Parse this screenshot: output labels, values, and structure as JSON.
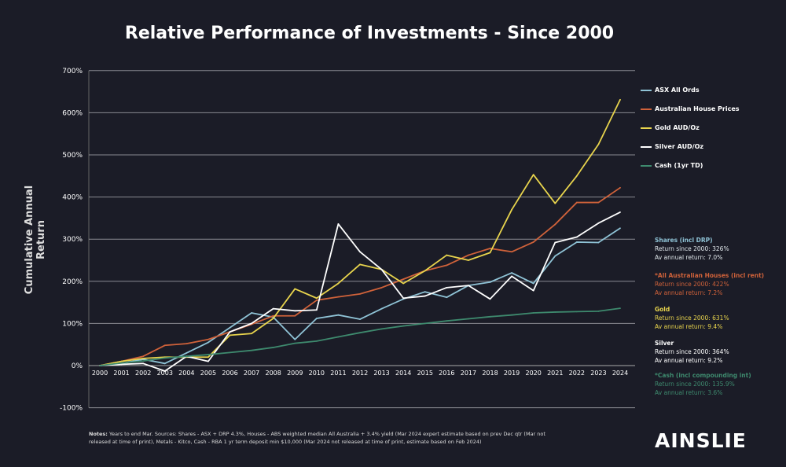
{
  "chart_data": {
    "type": "line",
    "title": "Relative Performance of Investments - Since 2000",
    "xlabel": "",
    "ylabel": "Cumulative Annual Return",
    "ylim": [
      -100,
      700
    ],
    "yticks": [
      "-100%",
      "0%",
      "100%",
      "200%",
      "300%",
      "400%",
      "500%",
      "600%",
      "700%"
    ],
    "grid": true,
    "legend_placement": "right",
    "x": [
      "2000",
      "2001",
      "2002",
      "2003",
      "2004",
      "2005",
      "2006",
      "2007",
      "2008",
      "2009",
      "2010",
      "2011",
      "2012",
      "2013",
      "2014",
      "2015",
      "2016",
      "2017",
      "2018",
      "2019",
      "2020",
      "2021",
      "2022",
      "2023",
      "2024"
    ],
    "series": [
      {
        "name": "ASX All Ords",
        "color": "#8fc3d6",
        "values": [
          0,
          5,
          15,
          5,
          30,
          55,
          90,
          125,
          115,
          62,
          112,
          120,
          110,
          135,
          158,
          175,
          162,
          190,
          198,
          220,
          195,
          260,
          293,
          292,
          326
        ]
      },
      {
        "name": "Australian House Prices",
        "color": "#d0623a",
        "values": [
          0,
          10,
          22,
          48,
          52,
          62,
          80,
          98,
          118,
          118,
          155,
          163,
          170,
          185,
          205,
          225,
          238,
          262,
          278,
          270,
          293,
          335,
          387,
          387,
          422
        ]
      },
      {
        "name": "Gold AUD/Oz",
        "color": "#e8d44d",
        "values": [
          0,
          10,
          17,
          20,
          20,
          20,
          72,
          76,
          112,
          182,
          160,
          195,
          240,
          228,
          195,
          225,
          262,
          250,
          268,
          370,
          453,
          385,
          450,
          525,
          631
        ]
      },
      {
        "name": "Silver AUD/Oz",
        "color": "#ffffff",
        "values": [
          0,
          3,
          5,
          -13,
          22,
          10,
          80,
          100,
          135,
          130,
          132,
          336,
          270,
          228,
          160,
          165,
          185,
          190,
          158,
          212,
          178,
          292,
          305,
          338,
          364
        ]
      },
      {
        "name": "Cash (1yr TD)",
        "color": "#3e8a6e",
        "values": [
          0,
          6,
          11,
          18,
          22,
          26,
          31,
          36,
          43,
          53,
          58,
          68,
          78,
          87,
          94,
          100,
          106,
          111,
          116,
          120,
          125,
          127,
          128,
          129,
          136
        ]
      }
    ]
  },
  "annotations": [
    {
      "title": "Shares (incl DRP)",
      "line1": "Return since 2000:  326%",
      "line2": "Av annual return: 7.0%",
      "color": "#8fc3d6",
      "text_color": "#dfe6ea"
    },
    {
      "title": "*All Australian Houses (incl rent)",
      "line1": "Return since 2000: 422%",
      "line2": "Av annual return: 7.2%",
      "color": "#d0623a",
      "text_color": "#d0623a"
    },
    {
      "title": "Gold",
      "line1": "Return since 2000: 631%",
      "line2": "Av annual return: 9.4%",
      "color": "#e8d44d",
      "text_color": "#e8d44d"
    },
    {
      "title": "Silver",
      "line1": "Return since 2000: 364%",
      "line2": "Av annual return: 9.2%",
      "color": "#ffffff",
      "text_color": "#ffffff"
    },
    {
      "title": "*Cash (incl compounding int)",
      "line1": "Return since 2000: 135.9%",
      "line2": "Av annual return: 3.6%",
      "color": "#3e8a6e",
      "text_color": "#3e8a6e"
    }
  ],
  "notes": {
    "label": "Notes:",
    "text": " Years to  end Mar.  Sources: Shares - ASX + DRP 4.3%, Houses - ABS weighted median All Australia + 3.4% yield (Mar 2024 expert estimate based on prev Dec qtr (Mar not released at time of print), Metals -  Kitco, Cash - RBA 1 yr term deposit min $10,000 (Mar 2024 not released at time of print, estimate based on Feb 2024)"
  },
  "logo": "AINSLIE"
}
